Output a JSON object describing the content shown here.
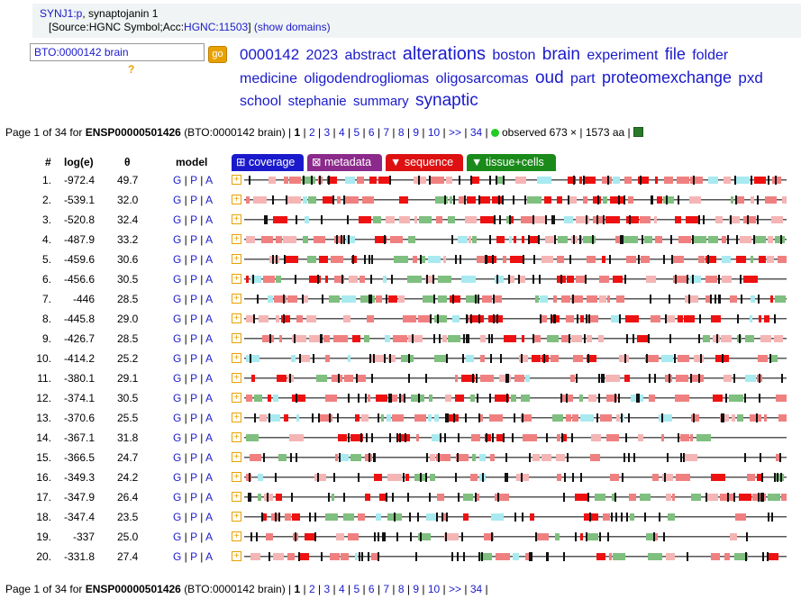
{
  "header": {
    "gene_link": "SYNJ1:p",
    "gene_desc": ", synaptojanin 1",
    "source_prefix": "[Source:HGNC Symbol;Acc:",
    "source_acc": "HGNC:11503",
    "source_suffix": "]",
    "show_domains": "(show domains)"
  },
  "search": {
    "value": "BTO:0000142 brain",
    "go_label": "go",
    "help": "?"
  },
  "tag_cloud": [
    {
      "t": "0000142",
      "s": 17
    },
    {
      "t": "2023",
      "s": 16
    },
    {
      "t": "abstract",
      "s": 16
    },
    {
      "t": "alterations",
      "s": 20
    },
    {
      "t": "boston",
      "s": 16
    },
    {
      "t": "brain",
      "s": 19
    },
    {
      "t": "experiment",
      "s": 16
    },
    {
      "t": "file",
      "s": 18
    },
    {
      "t": "folder",
      "s": 16
    },
    {
      "t": "medicine",
      "s": 16
    },
    {
      "t": "oligodendrogliomas",
      "s": 16
    },
    {
      "t": "oligosarcomas",
      "s": 16
    },
    {
      "t": "oud",
      "s": 19
    },
    {
      "t": "part",
      "s": 16
    },
    {
      "t": "proteomexchange",
      "s": 18
    },
    {
      "t": "pxd",
      "s": 17
    },
    {
      "t": "school",
      "s": 16
    },
    {
      "t": "stephanie",
      "s": 15
    },
    {
      "t": "summary",
      "s": 15
    },
    {
      "t": "synaptic",
      "s": 19
    }
  ],
  "pager": {
    "page_text": "Page 1 of 34 for",
    "protein": "ENSP00000501426",
    "context": "(BTO:0000142 brain)",
    "pages": [
      "1",
      "2",
      "3",
      "4",
      "5",
      "6",
      "7",
      "8",
      "9",
      "10",
      ">>",
      "34"
    ],
    "observed": "observed 673 × | 1573 aa |"
  },
  "columns": {
    "num": "#",
    "loge": "log(e)",
    "theta": "θ",
    "model": "model"
  },
  "tabs": [
    {
      "label": "⊞ coverage",
      "color": "#1a1acc"
    },
    {
      "label": "⊠ metadata",
      "color": "#8b2a8b"
    },
    {
      "label": "▼ sequence",
      "color": "#dd1111"
    },
    {
      "label": "▼ tissue+cells",
      "color": "#1a8a1a"
    }
  ],
  "model_links": [
    "G",
    "P",
    "A"
  ],
  "rows": [
    {
      "n": "1.",
      "loge": "-972.4",
      "theta": "49.7"
    },
    {
      "n": "2.",
      "loge": "-539.1",
      "theta": "32.0"
    },
    {
      "n": "3.",
      "loge": "-520.8",
      "theta": "32.4"
    },
    {
      "n": "4.",
      "loge": "-487.9",
      "theta": "33.2"
    },
    {
      "n": "5.",
      "loge": "-459.6",
      "theta": "30.6"
    },
    {
      "n": "6.",
      "loge": "-456.6",
      "theta": "30.5"
    },
    {
      "n": "7.",
      "loge": "-446",
      "theta": "28.5"
    },
    {
      "n": "8.",
      "loge": "-445.8",
      "theta": "29.0"
    },
    {
      "n": "9.",
      "loge": "-426.7",
      "theta": "28.5"
    },
    {
      "n": "10.",
      "loge": "-414.2",
      "theta": "25.2"
    },
    {
      "n": "11.",
      "loge": "-380.1",
      "theta": "29.1"
    },
    {
      "n": "12.",
      "loge": "-374.1",
      "theta": "30.5"
    },
    {
      "n": "13.",
      "loge": "-370.6",
      "theta": "25.5"
    },
    {
      "n": "14.",
      "loge": "-367.1",
      "theta": "31.8"
    },
    {
      "n": "15.",
      "loge": "-366.5",
      "theta": "24.7"
    },
    {
      "n": "16.",
      "loge": "-349.3",
      "theta": "24.2"
    },
    {
      "n": "17.",
      "loge": "-347.9",
      "theta": "26.4"
    },
    {
      "n": "18.",
      "loge": "-347.4",
      "theta": "23.5"
    },
    {
      "n": "19.",
      "loge": "-337",
      "theta": "25.0"
    },
    {
      "n": "20.",
      "loge": "-331.8",
      "theta": "27.4"
    }
  ],
  "colors": {
    "high": "#ee1111",
    "mid": "#f08080",
    "low": "#f5b5b5",
    "green": "#7fbf7f",
    "cyan": "#a8eaf0",
    "line": "#555555"
  }
}
